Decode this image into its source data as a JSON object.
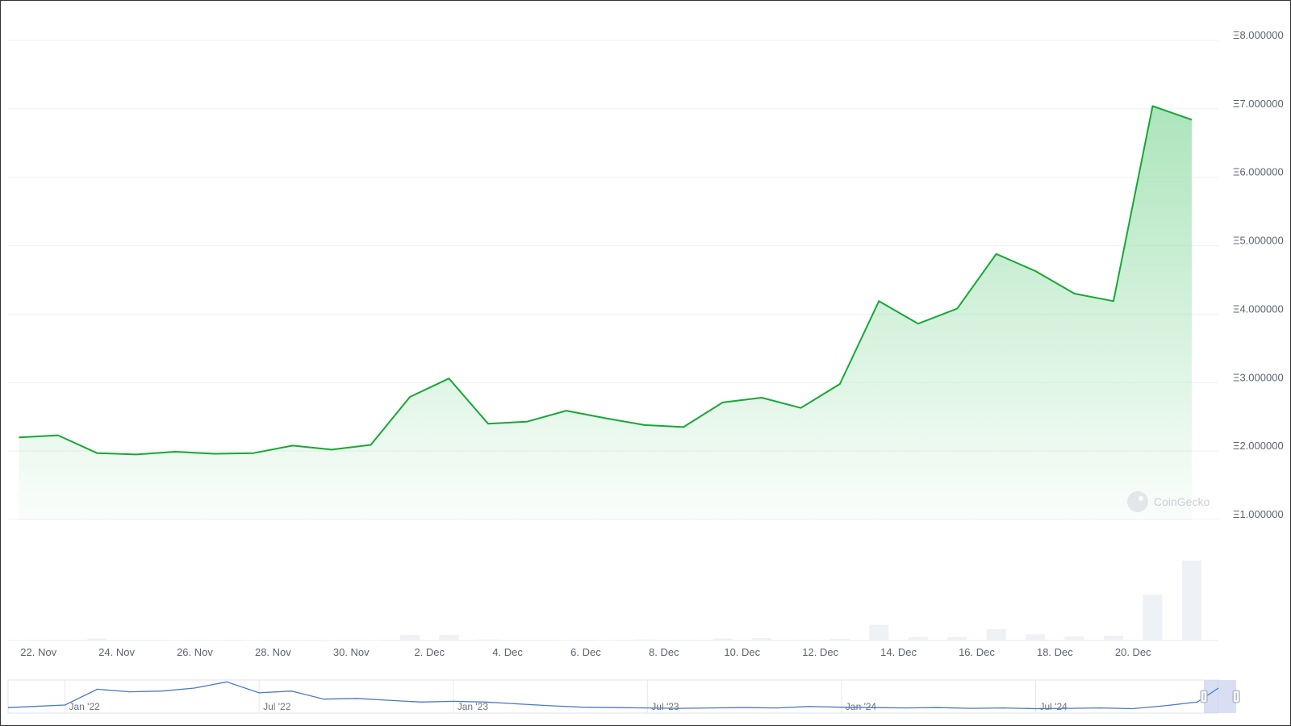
{
  "watermark": "CoinGecko",
  "colors": {
    "line": "#16a834",
    "area_top": "#9ee0b0",
    "grid": "#eef0f3",
    "volume": "#eef1f5",
    "navigator_line": "#4a78c8",
    "navigator_window": "#c8d2ee"
  },
  "chart_data": {
    "type": "line",
    "y_unit_prefix": "Ξ",
    "ylim": [
      1,
      8
    ],
    "y_ticks": [
      "Ξ8.000000",
      "Ξ7.000000",
      "Ξ6.000000",
      "Ξ5.000000",
      "Ξ4.000000",
      "Ξ3.000000",
      "Ξ2.000000",
      "Ξ1.000000"
    ],
    "y_tick_values": [
      8,
      7,
      6,
      5,
      4,
      3,
      2,
      1
    ],
    "x_ticks": [
      "22. Nov",
      "24. Nov",
      "26. Nov",
      "28. Nov",
      "30. Nov",
      "2. Dec",
      "4. Dec",
      "6. Dec",
      "8. Dec",
      "10. Dec",
      "12. Dec",
      "14. Dec",
      "16. Dec",
      "18. Dec",
      "20. Dec"
    ],
    "x_tick_days": [
      1,
      3,
      5,
      7,
      9,
      11,
      13,
      15,
      17,
      19,
      21,
      23,
      25,
      27,
      29
    ],
    "grid": true,
    "legend": "none",
    "price": {
      "x_days": [
        0.5,
        1.5,
        2.5,
        3.5,
        4.5,
        5.5,
        6.5,
        7.5,
        8.5,
        9.5,
        10.5,
        11.5,
        12.5,
        13.5,
        14.5,
        15.5,
        16.5,
        17.5,
        18.5,
        19.5,
        20.5,
        21.5,
        22.5,
        23.5,
        24.5,
        25.5,
        26.5,
        27.5,
        28.5,
        29.5,
        30.5
      ],
      "values": [
        2.2,
        2.23,
        1.97,
        1.95,
        1.99,
        1.96,
        1.97,
        2.08,
        2.02,
        2.09,
        2.79,
        3.06,
        2.4,
        2.43,
        2.59,
        2.48,
        2.38,
        2.35,
        2.71,
        2.78,
        2.63,
        2.98,
        4.19,
        3.86,
        4.08,
        4.88,
        4.63,
        4.3,
        4.19,
        7.04,
        6.84
      ]
    },
    "volume": {
      "x_days": [
        0.5,
        1.5,
        2.5,
        3.5,
        4.5,
        5.5,
        6.5,
        7.5,
        8.5,
        9.5,
        10.5,
        11.5,
        12.5,
        13.5,
        14.5,
        15.5,
        16.5,
        17.5,
        18.5,
        19.5,
        20.5,
        21.5,
        22.5,
        23.5,
        24.5,
        25.5,
        26.5,
        27.5,
        28.5,
        29.5,
        30.5
      ],
      "values": [
        0.2,
        0.4,
        1.0,
        0.3,
        0.2,
        0.2,
        0.2,
        0.3,
        0.2,
        0.2,
        2.7,
        2.7,
        0.5,
        0.3,
        0.2,
        0.2,
        0.5,
        0.4,
        1.0,
        1.2,
        0.4,
        0.9,
        7.8,
        1.6,
        1.7,
        5.7,
        3.1,
        2.0,
        2.4,
        23.0,
        40.0
      ]
    },
    "navigator": {
      "x_ticks": [
        "Jan '22",
        "Jul '22",
        "Jan '23",
        "Jul '23",
        "Jan '24",
        "Jul '24"
      ],
      "x_tick_months": [
        0,
        6,
        12,
        18,
        24,
        30
      ],
      "x_months": [
        -2,
        -1,
        0,
        1,
        2,
        3,
        4,
        5,
        6,
        7,
        8,
        9,
        10,
        11,
        12,
        13,
        14,
        15,
        16,
        17,
        18,
        19,
        20,
        21,
        22,
        23,
        24,
        25,
        26,
        27,
        28,
        29,
        30,
        31,
        32,
        33,
        34,
        35,
        36
      ],
      "values": [
        1.5,
        1.8,
        2.2,
        6.5,
        5.8,
        6.0,
        6.8,
        8.5,
        5.5,
        6.0,
        3.8,
        4.0,
        3.5,
        3.0,
        3.2,
        3.0,
        2.5,
        2.0,
        1.6,
        1.5,
        1.4,
        1.3,
        1.4,
        1.5,
        1.4,
        1.8,
        1.6,
        1.5,
        1.4,
        1.5,
        1.3,
        1.4,
        1.2,
        1.3,
        1.4,
        1.2,
        2.0,
        3.0,
        6.8
      ],
      "selected_range_months": [
        35.2,
        36.2
      ]
    }
  }
}
